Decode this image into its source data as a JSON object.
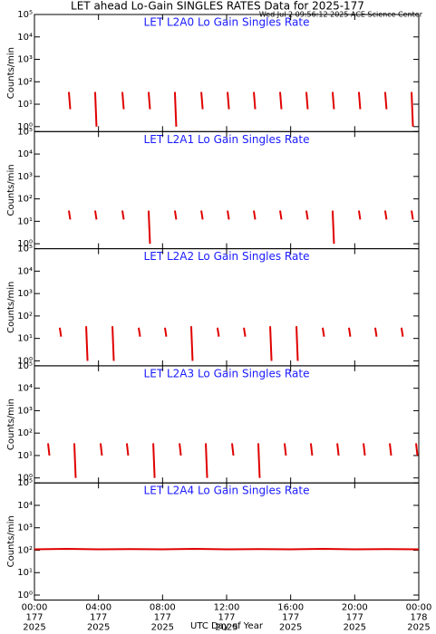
{
  "title": "LET ahead Lo-Gain SINGLES RATES Data for 2025-177",
  "subtitle": "Wed Jul  2 09:56:12 2025 ACE Science Center",
  "xlabel": "UTC Day of Year",
  "chart_data": [
    {
      "type": "spike",
      "title": "LET L2A0 Lo Gain Singles Rate",
      "ylabel": "Counts/min",
      "color": "#e00000",
      "x": [
        2.15,
        3.79,
        5.49,
        7.13,
        8.77,
        10.42,
        12.06,
        13.7,
        15.34,
        16.98,
        18.62,
        20.26,
        21.9,
        23.55
      ],
      "values": [
        35,
        35,
        35,
        35,
        35,
        35,
        35,
        35,
        35,
        35,
        35,
        35,
        35,
        35
      ],
      "lows": [
        6,
        1,
        6,
        6,
        1,
        6,
        6,
        6,
        6,
        6,
        6,
        6,
        6,
        1
      ],
      "xlim": [
        0,
        24
      ],
      "ylim": [
        0.6,
        100000
      ],
      "log": true,
      "yticks": [
        {
          "value": 1,
          "label": "10⁰"
        },
        {
          "value": 10,
          "label": "10¹"
        },
        {
          "value": 100,
          "label": "10²"
        },
        {
          "value": 1000,
          "label": "10³"
        },
        {
          "value": 10000,
          "label": "10⁴"
        },
        {
          "value": 100000,
          "label": "10⁵"
        }
      ]
    },
    {
      "type": "spike",
      "title": "LET L2A1 Lo Gain Singles Rate",
      "ylabel": "Counts/min",
      "color": "#e00000",
      "x": [
        2.15,
        3.79,
        5.49,
        7.13,
        8.77,
        10.42,
        12.06,
        13.7,
        15.34,
        16.98,
        18.62,
        20.26,
        21.9,
        23.55
      ],
      "values": [
        30,
        30,
        30,
        30,
        30,
        30,
        30,
        30,
        30,
        30,
        30,
        30,
        30,
        30
      ],
      "lows": [
        12,
        12,
        12,
        1,
        12,
        12,
        12,
        12,
        12,
        12,
        1,
        12,
        12,
        12
      ],
      "xlim": [
        0,
        24
      ],
      "ylim": [
        0.6,
        100000
      ],
      "log": true,
      "yticks": [
        {
          "value": 1,
          "label": "10⁰"
        },
        {
          "value": 10,
          "label": "10¹"
        },
        {
          "value": 100,
          "label": "10²"
        },
        {
          "value": 1000,
          "label": "10³"
        },
        {
          "value": 10000,
          "label": "10⁴"
        },
        {
          "value": 100000,
          "label": "10⁵"
        }
      ]
    },
    {
      "type": "spike",
      "title": "LET L2A2 Lo Gain Singles Rate",
      "ylabel": "Counts/min",
      "color": "#e00000",
      "x": [
        1.58,
        3.23,
        4.87,
        6.51,
        8.15,
        9.79,
        11.43,
        13.08,
        14.72,
        16.36,
        18.0,
        19.64,
        21.28,
        22.92
      ],
      "values": [
        30,
        35,
        35,
        30,
        30,
        35,
        30,
        30,
        35,
        35,
        30,
        30,
        30,
        30
      ],
      "lows": [
        12,
        1,
        1,
        12,
        12,
        1,
        12,
        12,
        1,
        1,
        12,
        12,
        12,
        12
      ],
      "xlim": [
        0,
        24
      ],
      "ylim": [
        0.6,
        100000
      ],
      "log": true,
      "yticks": [
        {
          "value": 1,
          "label": "10⁰"
        },
        {
          "value": 10,
          "label": "10¹"
        },
        {
          "value": 100,
          "label": "10²"
        },
        {
          "value": 1000,
          "label": "10³"
        },
        {
          "value": 10000,
          "label": "10⁴"
        },
        {
          "value": 100000,
          "label": "10⁵"
        }
      ]
    },
    {
      "type": "spike",
      "title": "LET L2A3 Lo Gain Singles Rate",
      "ylabel": "Counts/min",
      "color": "#e00000",
      "x": [
        0.85,
        2.49,
        4.13,
        5.77,
        7.42,
        9.06,
        10.7,
        12.34,
        13.98,
        15.62,
        17.26,
        18.91,
        20.55,
        22.19,
        23.83
      ],
      "values": [
        35,
        35,
        35,
        35,
        35,
        35,
        35,
        35,
        35,
        35,
        35,
        35,
        35,
        35,
        35
      ],
      "lows": [
        10,
        1,
        10,
        10,
        1,
        10,
        1,
        10,
        1,
        10,
        10,
        10,
        10,
        10,
        10
      ],
      "xlim": [
        0,
        24
      ],
      "ylim": [
        0.6,
        100000
      ],
      "log": true,
      "yticks": [
        {
          "value": 1,
          "label": "10⁰"
        },
        {
          "value": 10,
          "label": "10¹"
        },
        {
          "value": 100,
          "label": "10²"
        },
        {
          "value": 1000,
          "label": "10³"
        },
        {
          "value": 10000,
          "label": "10⁴"
        },
        {
          "value": 100000,
          "label": "10⁵"
        }
      ]
    },
    {
      "type": "line",
      "title": "LET L2A4 Lo Gain Singles Rate",
      "ylabel": "Counts/min",
      "color": "#e00000",
      "x": [
        0,
        2,
        4,
        6,
        8,
        10,
        12,
        14,
        16,
        18,
        20,
        22,
        24
      ],
      "values": [
        110,
        115,
        110,
        112,
        110,
        115,
        110,
        112,
        110,
        115,
        110,
        112,
        110
      ],
      "xlim": [
        0,
        24
      ],
      "ylim": [
        0.6,
        100000
      ],
      "log": true,
      "yticks": [
        {
          "value": 1,
          "label": "10⁰"
        },
        {
          "value": 10,
          "label": "10¹"
        },
        {
          "value": 100,
          "label": "10²"
        },
        {
          "value": 1000,
          "label": "10³"
        },
        {
          "value": 10000,
          "label": "10⁴"
        },
        {
          "value": 100000,
          "label": "10⁵"
        }
      ],
      "xticks": [
        {
          "value": 0,
          "label": "00:00"
        },
        {
          "value": 4,
          "label": "04:00"
        },
        {
          "value": 8,
          "label": "08:00"
        },
        {
          "value": 12,
          "label": "12:00"
        },
        {
          "value": 16,
          "label": "16:00"
        },
        {
          "value": 20,
          "label": "20:00"
        },
        {
          "value": 24,
          "label": "00:00"
        }
      ],
      "xtick_days": [
        "177",
        "177",
        "177",
        "177",
        "177",
        "177",
        "178"
      ],
      "xtick_years": [
        "2025",
        "2025",
        "2025",
        "2025",
        "2025",
        "2025",
        "2025"
      ]
    }
  ]
}
